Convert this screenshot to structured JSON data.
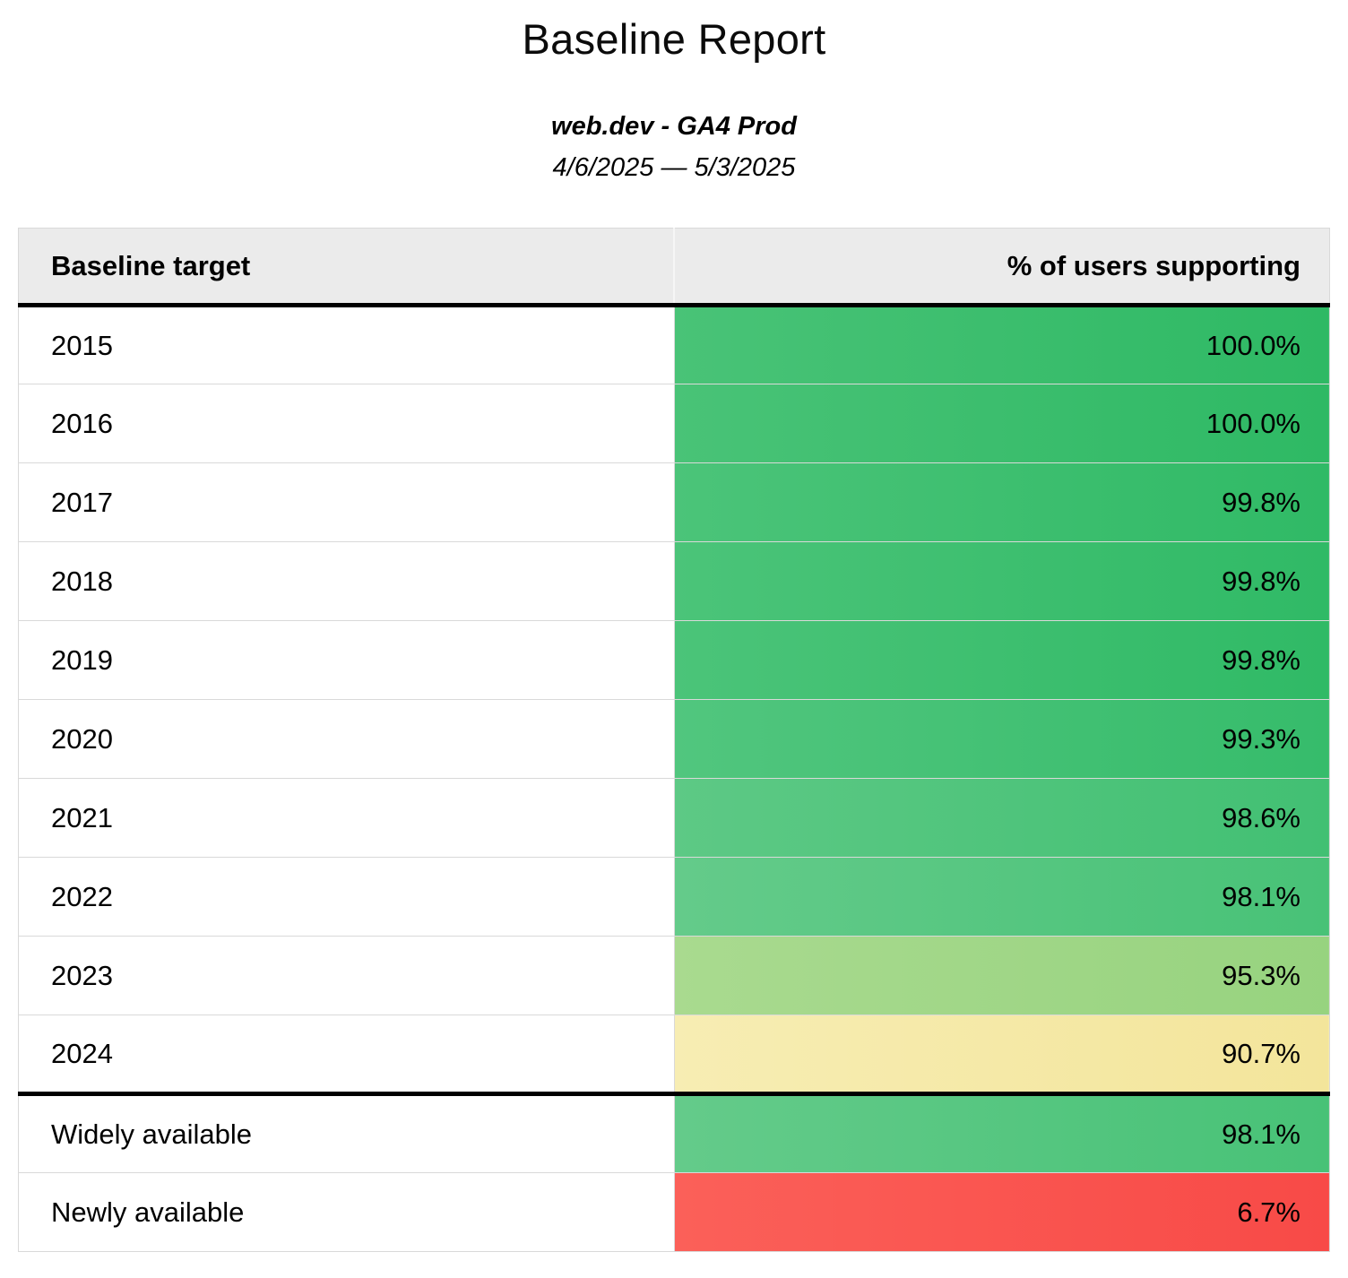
{
  "report": {
    "title": "Baseline Report",
    "subtitle": "web.dev - GA4 Prod",
    "date_range": "4/6/2025 — 5/3/2025"
  },
  "table": {
    "columns": [
      {
        "label": "Baseline target",
        "align": "left"
      },
      {
        "label": "% of users supporting",
        "align": "right"
      }
    ],
    "rows": [
      {
        "target": "2015",
        "value": "100.0%",
        "color_from": "#49c377",
        "color_to": "#2eb964",
        "thick_top": false
      },
      {
        "target": "2016",
        "value": "100.0%",
        "color_from": "#49c377",
        "color_to": "#2eb964",
        "thick_top": false
      },
      {
        "target": "2017",
        "value": "99.8%",
        "color_from": "#4bc479",
        "color_to": "#30ba66",
        "thick_top": false
      },
      {
        "target": "2018",
        "value": "99.8%",
        "color_from": "#4bc479",
        "color_to": "#30ba66",
        "thick_top": false
      },
      {
        "target": "2019",
        "value": "99.8%",
        "color_from": "#4bc479",
        "color_to": "#30ba66",
        "thick_top": false
      },
      {
        "target": "2020",
        "value": "99.3%",
        "color_from": "#51c67e",
        "color_to": "#36bc6b",
        "thick_top": false
      },
      {
        "target": "2021",
        "value": "98.6%",
        "color_from": "#5dc985",
        "color_to": "#42c073",
        "thick_top": false
      },
      {
        "target": "2022",
        "value": "98.1%",
        "color_from": "#64cb8a",
        "color_to": "#48c277",
        "thick_top": false
      },
      {
        "target": "2023",
        "value": "95.3%",
        "color_from": "#a9da8f",
        "color_to": "#97d37f",
        "thick_top": false
      },
      {
        "target": "2024",
        "value": "90.7%",
        "color_from": "#f7edb3",
        "color_to": "#f3e59b",
        "thick_top": false
      },
      {
        "target": "Widely available",
        "value": "98.1%",
        "color_from": "#64cb8a",
        "color_to": "#48c277",
        "thick_top": true
      },
      {
        "target": "Newly available",
        "value": "6.7%",
        "color_from": "#fb6059",
        "color_to": "#f84a47",
        "thick_top": false
      }
    ]
  },
  "colors": {
    "header_bg": "#ebebeb",
    "row_border": "#d9d9d9",
    "section_border": "#000000",
    "text": "#000000",
    "green_full": "#2eb964",
    "green_pale": "#9ed685",
    "yellow": "#f5e9a8",
    "red": "#f95450"
  },
  "chart_data": {
    "type": "table",
    "title": "Baseline Report",
    "subtitle": "web.dev - GA4 Prod",
    "date_range": "4/6/2025 — 5/3/2025",
    "columns": [
      "Baseline target",
      "% of users supporting"
    ],
    "categories": [
      "2015",
      "2016",
      "2017",
      "2018",
      "2019",
      "2020",
      "2021",
      "2022",
      "2023",
      "2024",
      "Widely available",
      "Newly available"
    ],
    "values": [
      100.0,
      100.0,
      99.8,
      99.8,
      99.8,
      99.3,
      98.6,
      98.1,
      95.3,
      90.7,
      98.1,
      6.7
    ],
    "value_format": "percent_one_decimal",
    "conditional_formatting": "red-yellow-green color scale on % of users supporting",
    "sections": {
      "years": [
        "2015",
        "2016",
        "2017",
        "2018",
        "2019",
        "2020",
        "2021",
        "2022",
        "2023",
        "2024"
      ],
      "summary": [
        "Widely available",
        "Newly available"
      ]
    }
  }
}
